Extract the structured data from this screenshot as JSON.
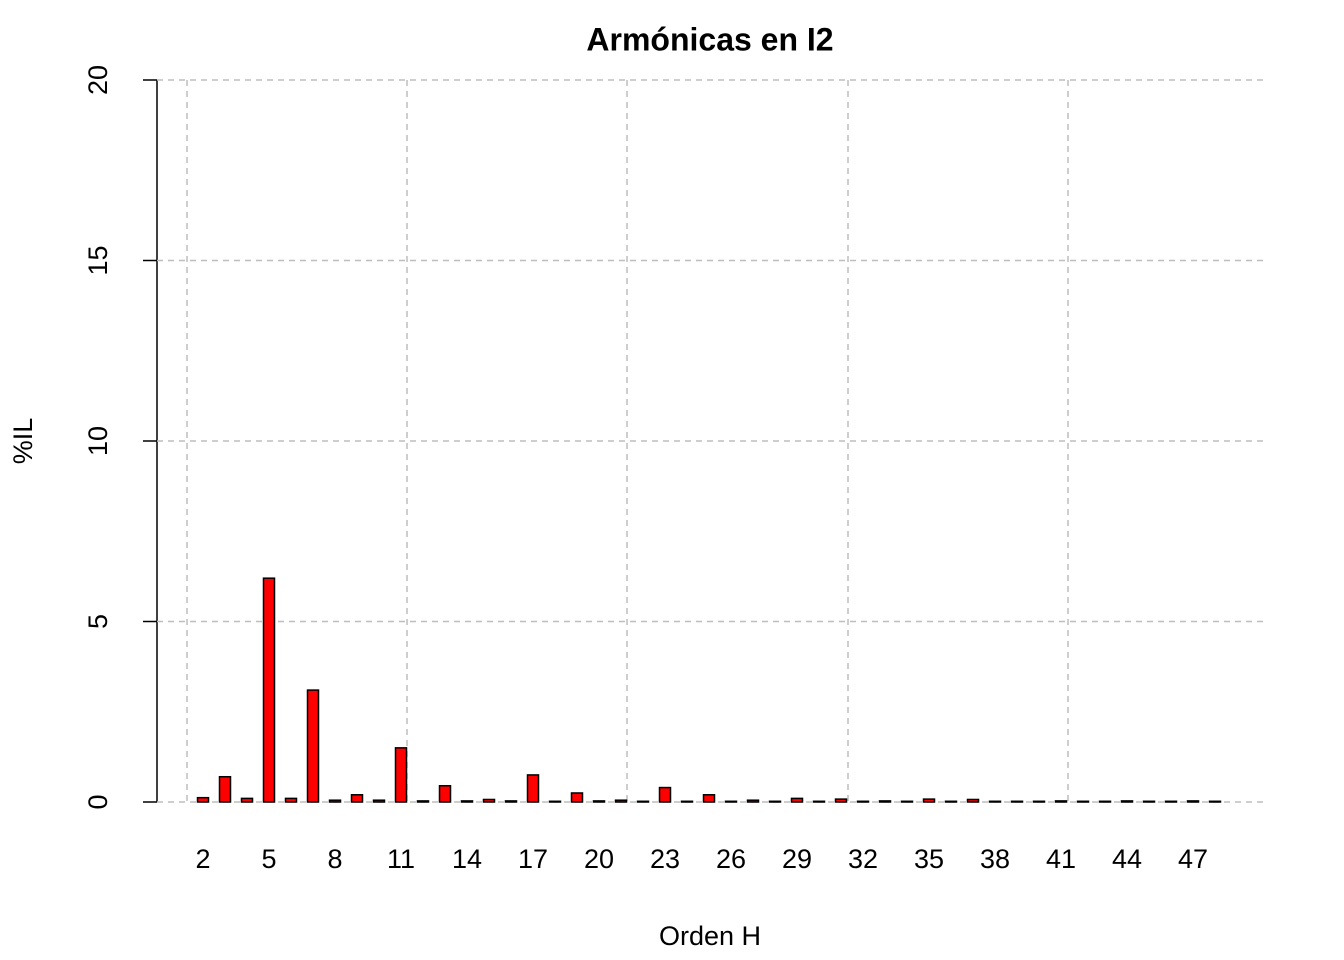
{
  "chart_data": {
    "type": "bar",
    "title": "Armónicas en I2",
    "x_label": "Orden H",
    "y_label": "%IL",
    "categories": [
      "2",
      null,
      null,
      "5",
      null,
      null,
      "8",
      null,
      null,
      "11",
      null,
      null,
      "14",
      null,
      null,
      "17",
      null,
      null,
      "20",
      null,
      null,
      "23",
      null,
      null,
      "26",
      null,
      null,
      "29",
      null,
      null,
      "32",
      null,
      null,
      "35",
      null,
      null,
      "38",
      null,
      null,
      "41",
      null,
      null,
      "44",
      null,
      null,
      "47",
      null
    ],
    "values": [
      0.12,
      0.7,
      0.1,
      6.2,
      0.1,
      3.1,
      0.05,
      0.2,
      0.05,
      1.5,
      0.03,
      0.45,
      0.03,
      0.07,
      0.03,
      0.75,
      0.02,
      0.25,
      0.03,
      0.05,
      0.02,
      0.4,
      0.02,
      0.2,
      0.02,
      0.05,
      0.02,
      0.1,
      0.02,
      0.08,
      0.02,
      0.03,
      0.02,
      0.08,
      0.02,
      0.07,
      0.02,
      0.02,
      0.02,
      0.03,
      0.02,
      0.02,
      0.03,
      0.02,
      0.02,
      0.03,
      0.02
    ],
    "color": "#ff0000",
    "ylim": [
      0,
      20
    ],
    "yticks": [
      0,
      5,
      10,
      15,
      20
    ],
    "grid": true
  }
}
